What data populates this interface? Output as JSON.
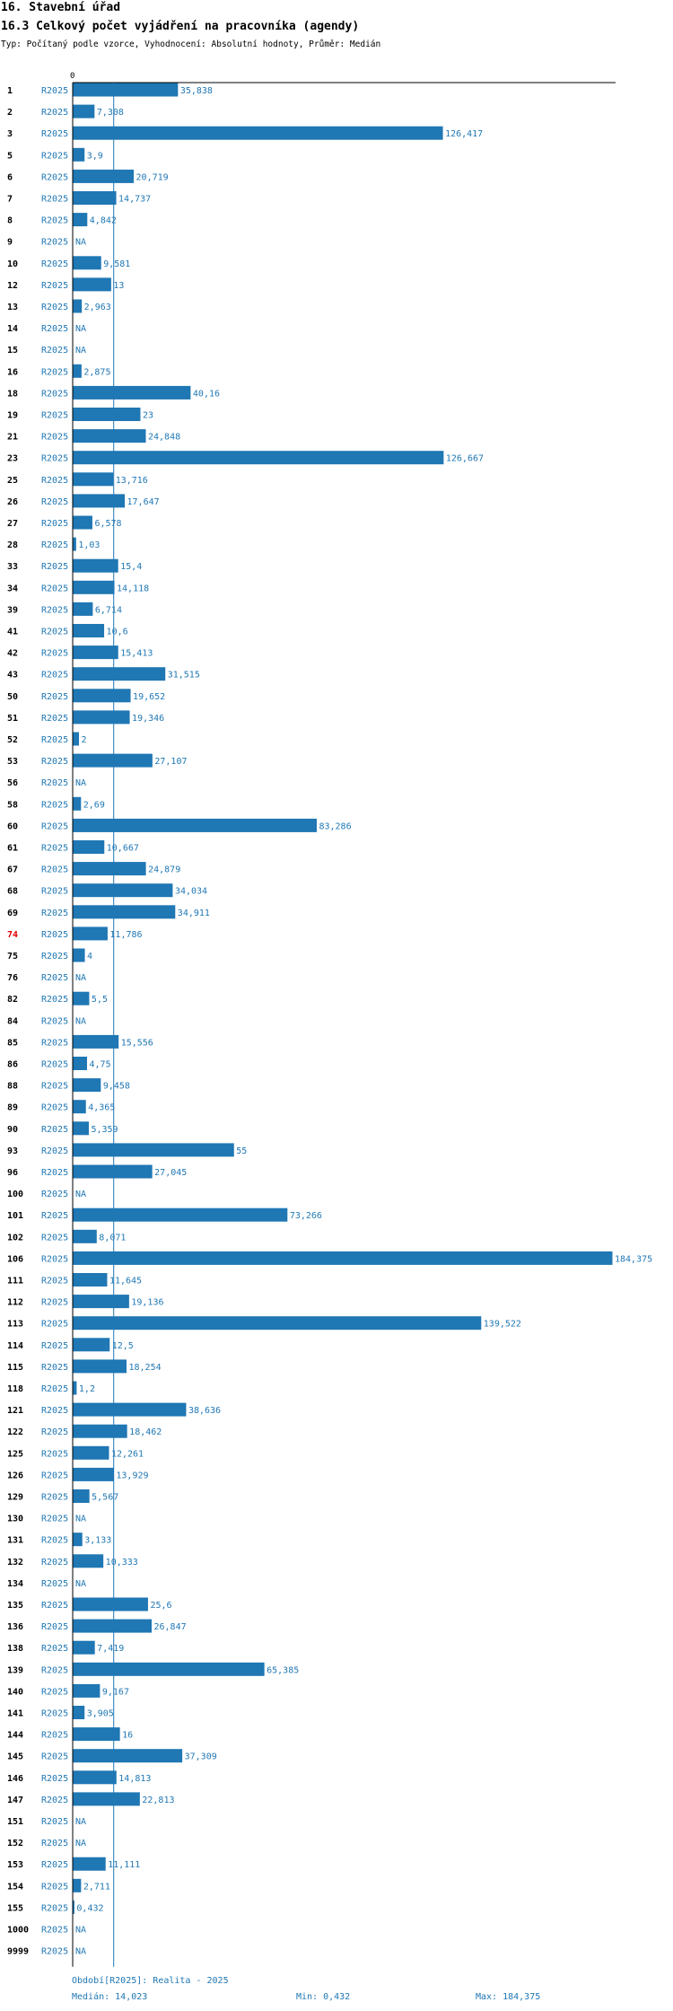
{
  "header": {
    "title": "16. Stavební úřad",
    "subtitle": "16.3 Celkový počet vyjádření na pracovníka (agendy)",
    "type_line": "Typ: Počítaný podle vzorce, Vyhodnocení: Absolutní hodnoty, Průměr: Medián"
  },
  "colors": {
    "bar": "#1f77b4",
    "highlight": "#e00000",
    "axis": "#000000",
    "median": "#1f77b4"
  },
  "chart_data": {
    "type": "bar",
    "orientation": "horizontal",
    "title": "16.3 Celkový počet vyjádření na pracovníka (agendy)",
    "axis_zero_label": "0",
    "xlim": [
      0,
      184.375
    ],
    "median": 14.023,
    "highlight_category": "74",
    "series": [
      {
        "name": "R2025",
        "values": []
      }
    ],
    "rows": [
      {
        "cat": "1",
        "series": "R2025",
        "value": 35.838,
        "label": "35,838"
      },
      {
        "cat": "2",
        "series": "R2025",
        "value": 7.308,
        "label": "7,308"
      },
      {
        "cat": "3",
        "series": "R2025",
        "value": 126.417,
        "label": "126,417"
      },
      {
        "cat": "5",
        "series": "R2025",
        "value": 3.9,
        "label": "3,9"
      },
      {
        "cat": "6",
        "series": "R2025",
        "value": 20.719,
        "label": "20,719"
      },
      {
        "cat": "7",
        "series": "R2025",
        "value": 14.737,
        "label": "14,737"
      },
      {
        "cat": "8",
        "series": "R2025",
        "value": 4.842,
        "label": "4,842"
      },
      {
        "cat": "9",
        "series": "R2025",
        "value": null,
        "label": "NA"
      },
      {
        "cat": "10",
        "series": "R2025",
        "value": 9.581,
        "label": "9,581"
      },
      {
        "cat": "12",
        "series": "R2025",
        "value": 13,
        "label": "13"
      },
      {
        "cat": "13",
        "series": "R2025",
        "value": 2.963,
        "label": "2,963"
      },
      {
        "cat": "14",
        "series": "R2025",
        "value": null,
        "label": "NA"
      },
      {
        "cat": "15",
        "series": "R2025",
        "value": null,
        "label": "NA"
      },
      {
        "cat": "16",
        "series": "R2025",
        "value": 2.875,
        "label": "2,875"
      },
      {
        "cat": "18",
        "series": "R2025",
        "value": 40.16,
        "label": "40,16"
      },
      {
        "cat": "19",
        "series": "R2025",
        "value": 23,
        "label": "23"
      },
      {
        "cat": "21",
        "series": "R2025",
        "value": 24.848,
        "label": "24,848"
      },
      {
        "cat": "23",
        "series": "R2025",
        "value": 126.667,
        "label": "126,667"
      },
      {
        "cat": "25",
        "series": "R2025",
        "value": 13.716,
        "label": "13,716"
      },
      {
        "cat": "26",
        "series": "R2025",
        "value": 17.647,
        "label": "17,647"
      },
      {
        "cat": "27",
        "series": "R2025",
        "value": 6.578,
        "label": "6,578"
      },
      {
        "cat": "28",
        "series": "R2025",
        "value": 1.03,
        "label": "1,03"
      },
      {
        "cat": "33",
        "series": "R2025",
        "value": 15.4,
        "label": "15,4"
      },
      {
        "cat": "34",
        "series": "R2025",
        "value": 14.118,
        "label": "14,118"
      },
      {
        "cat": "39",
        "series": "R2025",
        "value": 6.714,
        "label": "6,714"
      },
      {
        "cat": "41",
        "series": "R2025",
        "value": 10.6,
        "label": "10,6"
      },
      {
        "cat": "42",
        "series": "R2025",
        "value": 15.413,
        "label": "15,413"
      },
      {
        "cat": "43",
        "series": "R2025",
        "value": 31.515,
        "label": "31,515"
      },
      {
        "cat": "50",
        "series": "R2025",
        "value": 19.652,
        "label": "19,652"
      },
      {
        "cat": "51",
        "series": "R2025",
        "value": 19.346,
        "label": "19,346"
      },
      {
        "cat": "52",
        "series": "R2025",
        "value": 2,
        "label": "2"
      },
      {
        "cat": "53",
        "series": "R2025",
        "value": 27.107,
        "label": "27,107"
      },
      {
        "cat": "56",
        "series": "R2025",
        "value": null,
        "label": "NA"
      },
      {
        "cat": "58",
        "series": "R2025",
        "value": 2.69,
        "label": "2,69"
      },
      {
        "cat": "60",
        "series": "R2025",
        "value": 83.286,
        "label": "83,286"
      },
      {
        "cat": "61",
        "series": "R2025",
        "value": 10.667,
        "label": "10,667"
      },
      {
        "cat": "67",
        "series": "R2025",
        "value": 24.879,
        "label": "24,879"
      },
      {
        "cat": "68",
        "series": "R2025",
        "value": 34.034,
        "label": "34,034"
      },
      {
        "cat": "69",
        "series": "R2025",
        "value": 34.911,
        "label": "34,911"
      },
      {
        "cat": "74",
        "series": "R2025",
        "value": 11.786,
        "label": "11,786"
      },
      {
        "cat": "75",
        "series": "R2025",
        "value": 4,
        "label": "4"
      },
      {
        "cat": "76",
        "series": "R2025",
        "value": null,
        "label": "NA"
      },
      {
        "cat": "82",
        "series": "R2025",
        "value": 5.5,
        "label": "5,5"
      },
      {
        "cat": "84",
        "series": "R2025",
        "value": null,
        "label": "NA"
      },
      {
        "cat": "85",
        "series": "R2025",
        "value": 15.556,
        "label": "15,556"
      },
      {
        "cat": "86",
        "series": "R2025",
        "value": 4.75,
        "label": "4,75"
      },
      {
        "cat": "88",
        "series": "R2025",
        "value": 9.458,
        "label": "9,458"
      },
      {
        "cat": "89",
        "series": "R2025",
        "value": 4.365,
        "label": "4,365"
      },
      {
        "cat": "90",
        "series": "R2025",
        "value": 5.359,
        "label": "5,359"
      },
      {
        "cat": "93",
        "series": "R2025",
        "value": 55,
        "label": "55"
      },
      {
        "cat": "96",
        "series": "R2025",
        "value": 27.045,
        "label": "27,045"
      },
      {
        "cat": "100",
        "series": "R2025",
        "value": null,
        "label": "NA"
      },
      {
        "cat": "101",
        "series": "R2025",
        "value": 73.266,
        "label": "73,266"
      },
      {
        "cat": "102",
        "series": "R2025",
        "value": 8.071,
        "label": "8,071"
      },
      {
        "cat": "106",
        "series": "R2025",
        "value": 184.375,
        "label": "184,375"
      },
      {
        "cat": "111",
        "series": "R2025",
        "value": 11.645,
        "label": "11,645"
      },
      {
        "cat": "112",
        "series": "R2025",
        "value": 19.136,
        "label": "19,136"
      },
      {
        "cat": "113",
        "series": "R2025",
        "value": 139.522,
        "label": "139,522"
      },
      {
        "cat": "114",
        "series": "R2025",
        "value": 12.5,
        "label": "12,5"
      },
      {
        "cat": "115",
        "series": "R2025",
        "value": 18.254,
        "label": "18,254"
      },
      {
        "cat": "118",
        "series": "R2025",
        "value": 1.2,
        "label": "1,2"
      },
      {
        "cat": "121",
        "series": "R2025",
        "value": 38.636,
        "label": "38,636"
      },
      {
        "cat": "122",
        "series": "R2025",
        "value": 18.462,
        "label": "18,462"
      },
      {
        "cat": "125",
        "series": "R2025",
        "value": 12.261,
        "label": "12,261"
      },
      {
        "cat": "126",
        "series": "R2025",
        "value": 13.929,
        "label": "13,929"
      },
      {
        "cat": "129",
        "series": "R2025",
        "value": 5.567,
        "label": "5,567"
      },
      {
        "cat": "130",
        "series": "R2025",
        "value": null,
        "label": "NA"
      },
      {
        "cat": "131",
        "series": "R2025",
        "value": 3.133,
        "label": "3,133"
      },
      {
        "cat": "132",
        "series": "R2025",
        "value": 10.333,
        "label": "10,333"
      },
      {
        "cat": "134",
        "series": "R2025",
        "value": null,
        "label": "NA"
      },
      {
        "cat": "135",
        "series": "R2025",
        "value": 25.6,
        "label": "25,6"
      },
      {
        "cat": "136",
        "series": "R2025",
        "value": 26.847,
        "label": "26,847"
      },
      {
        "cat": "138",
        "series": "R2025",
        "value": 7.419,
        "label": "7,419"
      },
      {
        "cat": "139",
        "series": "R2025",
        "value": 65.385,
        "label": "65,385"
      },
      {
        "cat": "140",
        "series": "R2025",
        "value": 9.167,
        "label": "9,167"
      },
      {
        "cat": "141",
        "series": "R2025",
        "value": 3.905,
        "label": "3,905"
      },
      {
        "cat": "144",
        "series": "R2025",
        "value": 16,
        "label": "16"
      },
      {
        "cat": "145",
        "series": "R2025",
        "value": 37.309,
        "label": "37,309"
      },
      {
        "cat": "146",
        "series": "R2025",
        "value": 14.813,
        "label": "14,813"
      },
      {
        "cat": "147",
        "series": "R2025",
        "value": 22.813,
        "label": "22,813"
      },
      {
        "cat": "151",
        "series": "R2025",
        "value": null,
        "label": "NA"
      },
      {
        "cat": "152",
        "series": "R2025",
        "value": null,
        "label": "NA"
      },
      {
        "cat": "153",
        "series": "R2025",
        "value": 11.111,
        "label": "11,111"
      },
      {
        "cat": "154",
        "series": "R2025",
        "value": 2.711,
        "label": "2,711"
      },
      {
        "cat": "155",
        "series": "R2025",
        "value": 0.432,
        "label": "0,432"
      },
      {
        "cat": "1000",
        "series": "R2025",
        "value": null,
        "label": "NA"
      },
      {
        "cat": "9999",
        "series": "R2025",
        "value": null,
        "label": "NA"
      }
    ]
  },
  "footer": {
    "period": "Období[R2025]: Realita - 2025",
    "median": "Medián: 14,023",
    "min": "Min: 0,432",
    "max": "Max: 184,375"
  }
}
